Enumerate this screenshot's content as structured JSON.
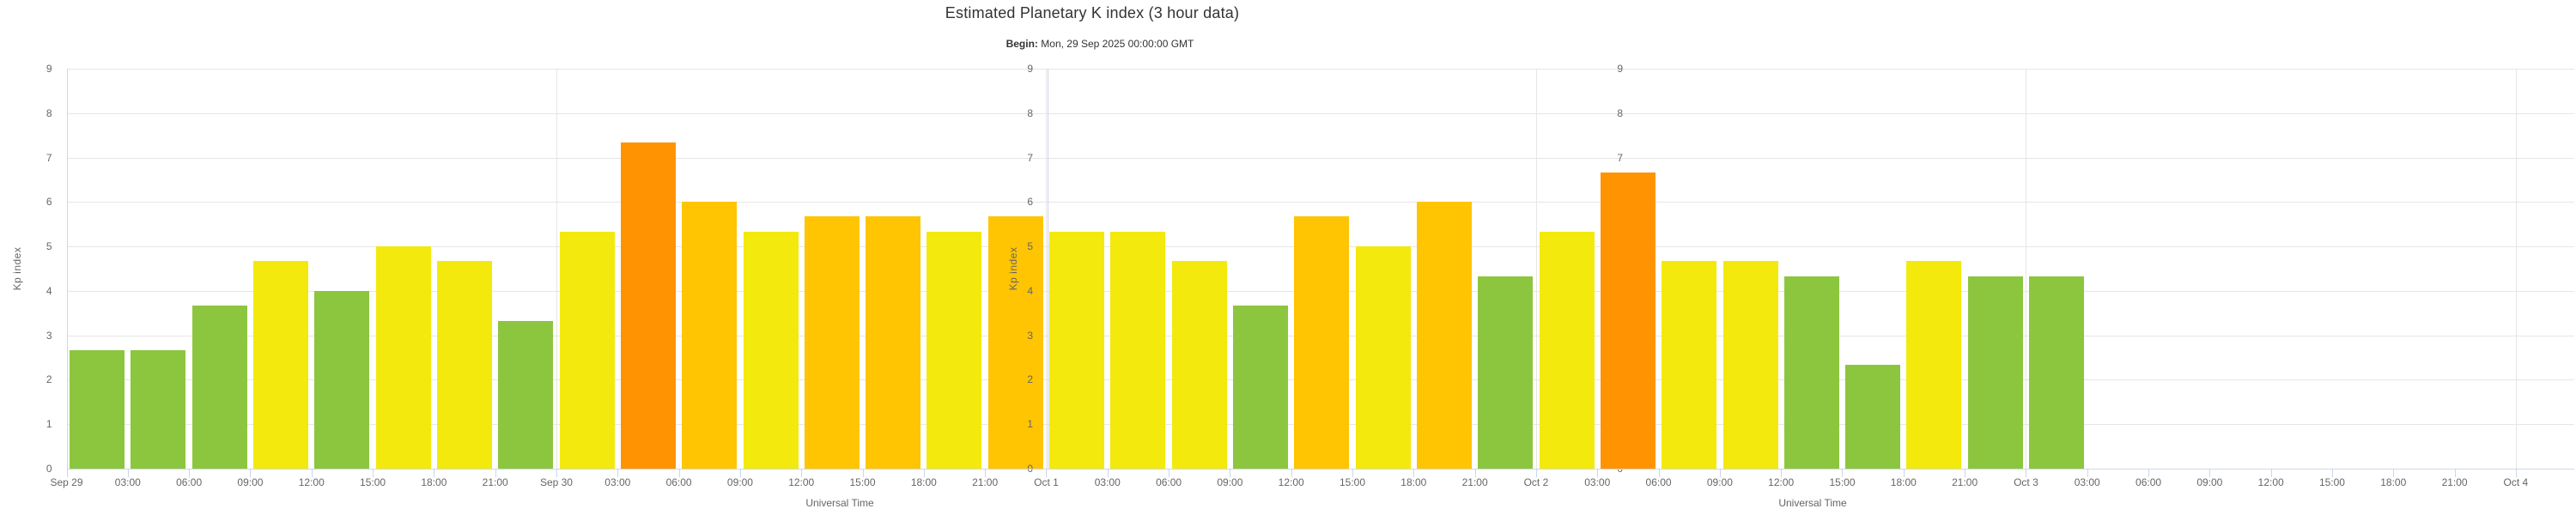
{
  "page": {
    "background": "#ffffff"
  },
  "header": {
    "title": "Estimated Planetary K index (3 hour data)",
    "subtitle_label": "Begin:",
    "subtitle_text": " Mon, 29 Sep 2025 00:00:00 GMT"
  },
  "chart_data": {
    "type": "bar",
    "title": "Estimated Planetary K index (3 hour data)",
    "subtitle": "Begin: Mon, 29 Sep 2025 00:00:00 GMT",
    "xlabel": "Universal Time",
    "ylabel": "Kp index",
    "ylim": [
      0,
      9
    ],
    "grid": true,
    "legend_position": "none",
    "y_tick_labels": [
      "0",
      "1",
      "2",
      "3",
      "4",
      "5",
      "6",
      "7",
      "8",
      "9"
    ],
    "x_tick_labels": [
      "Sep 29",
      "03:00",
      "06:00",
      "09:00",
      "12:00",
      "15:00",
      "18:00",
      "21:00",
      "Sep 30",
      "03:00",
      "06:00",
      "09:00",
      "12:00",
      "15:00",
      "18:00",
      "21:00",
      "Oct 1",
      "03:00",
      "06:00",
      "09:00",
      "12:00",
      "15:00",
      "18:00",
      "21:00",
      "Oct 2",
      "03:00",
      "06:00",
      "09:00",
      "12:00",
      "15:00",
      "18:00",
      "21:00",
      "Oct 3",
      "03:00",
      "06:00",
      "09:00",
      "12:00",
      "15:00",
      "18:00",
      "21:00",
      "Oct 4"
    ],
    "day_gridline_tick_indices": [
      8,
      16,
      24,
      32,
      40
    ],
    "categories": [
      "Sep 29 00:00",
      "Sep 29 03:00",
      "Sep 29 06:00",
      "Sep 29 09:00",
      "Sep 29 12:00",
      "Sep 29 15:00",
      "Sep 29 18:00",
      "Sep 29 21:00",
      "Sep 30 00:00",
      "Sep 30 03:00",
      "Sep 30 06:00",
      "Sep 30 09:00",
      "Sep 30 12:00",
      "Sep 30 15:00",
      "Sep 30 18:00",
      "Sep 30 21:00",
      "Oct 1 00:00",
      "Oct 1 03:00",
      "Oct 1 06:00",
      "Oct 1 09:00",
      "Oct 1 12:00",
      "Oct 1 15:00",
      "Oct 1 18:00",
      "Oct 1 21:00",
      "Oct 2 00:00",
      "Oct 2 03:00",
      "Oct 2 06:00",
      "Oct 2 09:00",
      "Oct 2 12:00",
      "Oct 2 15:00",
      "Oct 2 18:00",
      "Oct 2 21:00",
      "Oct 3 00:00"
    ],
    "values": [
      2.67,
      2.67,
      3.67,
      4.67,
      4.0,
      5.0,
      4.67,
      3.33,
      5.33,
      7.33,
      6.0,
      5.33,
      5.67,
      5.67,
      5.33,
      5.67,
      5.33,
      5.33,
      4.67,
      3.67,
      5.67,
      5.0,
      6.0,
      4.33,
      5.33,
      6.67,
      4.67,
      4.67,
      4.33,
      2.33,
      4.67,
      4.33,
      4.33
    ],
    "bar_colors": [
      "green",
      "green",
      "green",
      "yellow",
      "green",
      "yellow",
      "yellow",
      "green",
      "yellow",
      "orange",
      "amber",
      "yellow",
      "amber",
      "amber",
      "yellow",
      "amber",
      "yellow",
      "yellow",
      "yellow",
      "green",
      "amber",
      "yellow",
      "amber",
      "green",
      "yellow",
      "orange",
      "yellow",
      "yellow",
      "green",
      "green",
      "yellow",
      "green",
      "green"
    ],
    "color_map": {
      "green": "#8cc63e",
      "yellow": "#f3e90d",
      "amber": "#ffc402",
      "orange": "#ff9302"
    },
    "color_rule": "rounded Kp <= 4 green, 5 yellow, 6 amber, >= 7 orange",
    "style_colors": {
      "gridline": "#e6e6e6",
      "axis_line": "#ccd6eb",
      "tick_text": "#666666",
      "title_text": "#333333"
    }
  }
}
